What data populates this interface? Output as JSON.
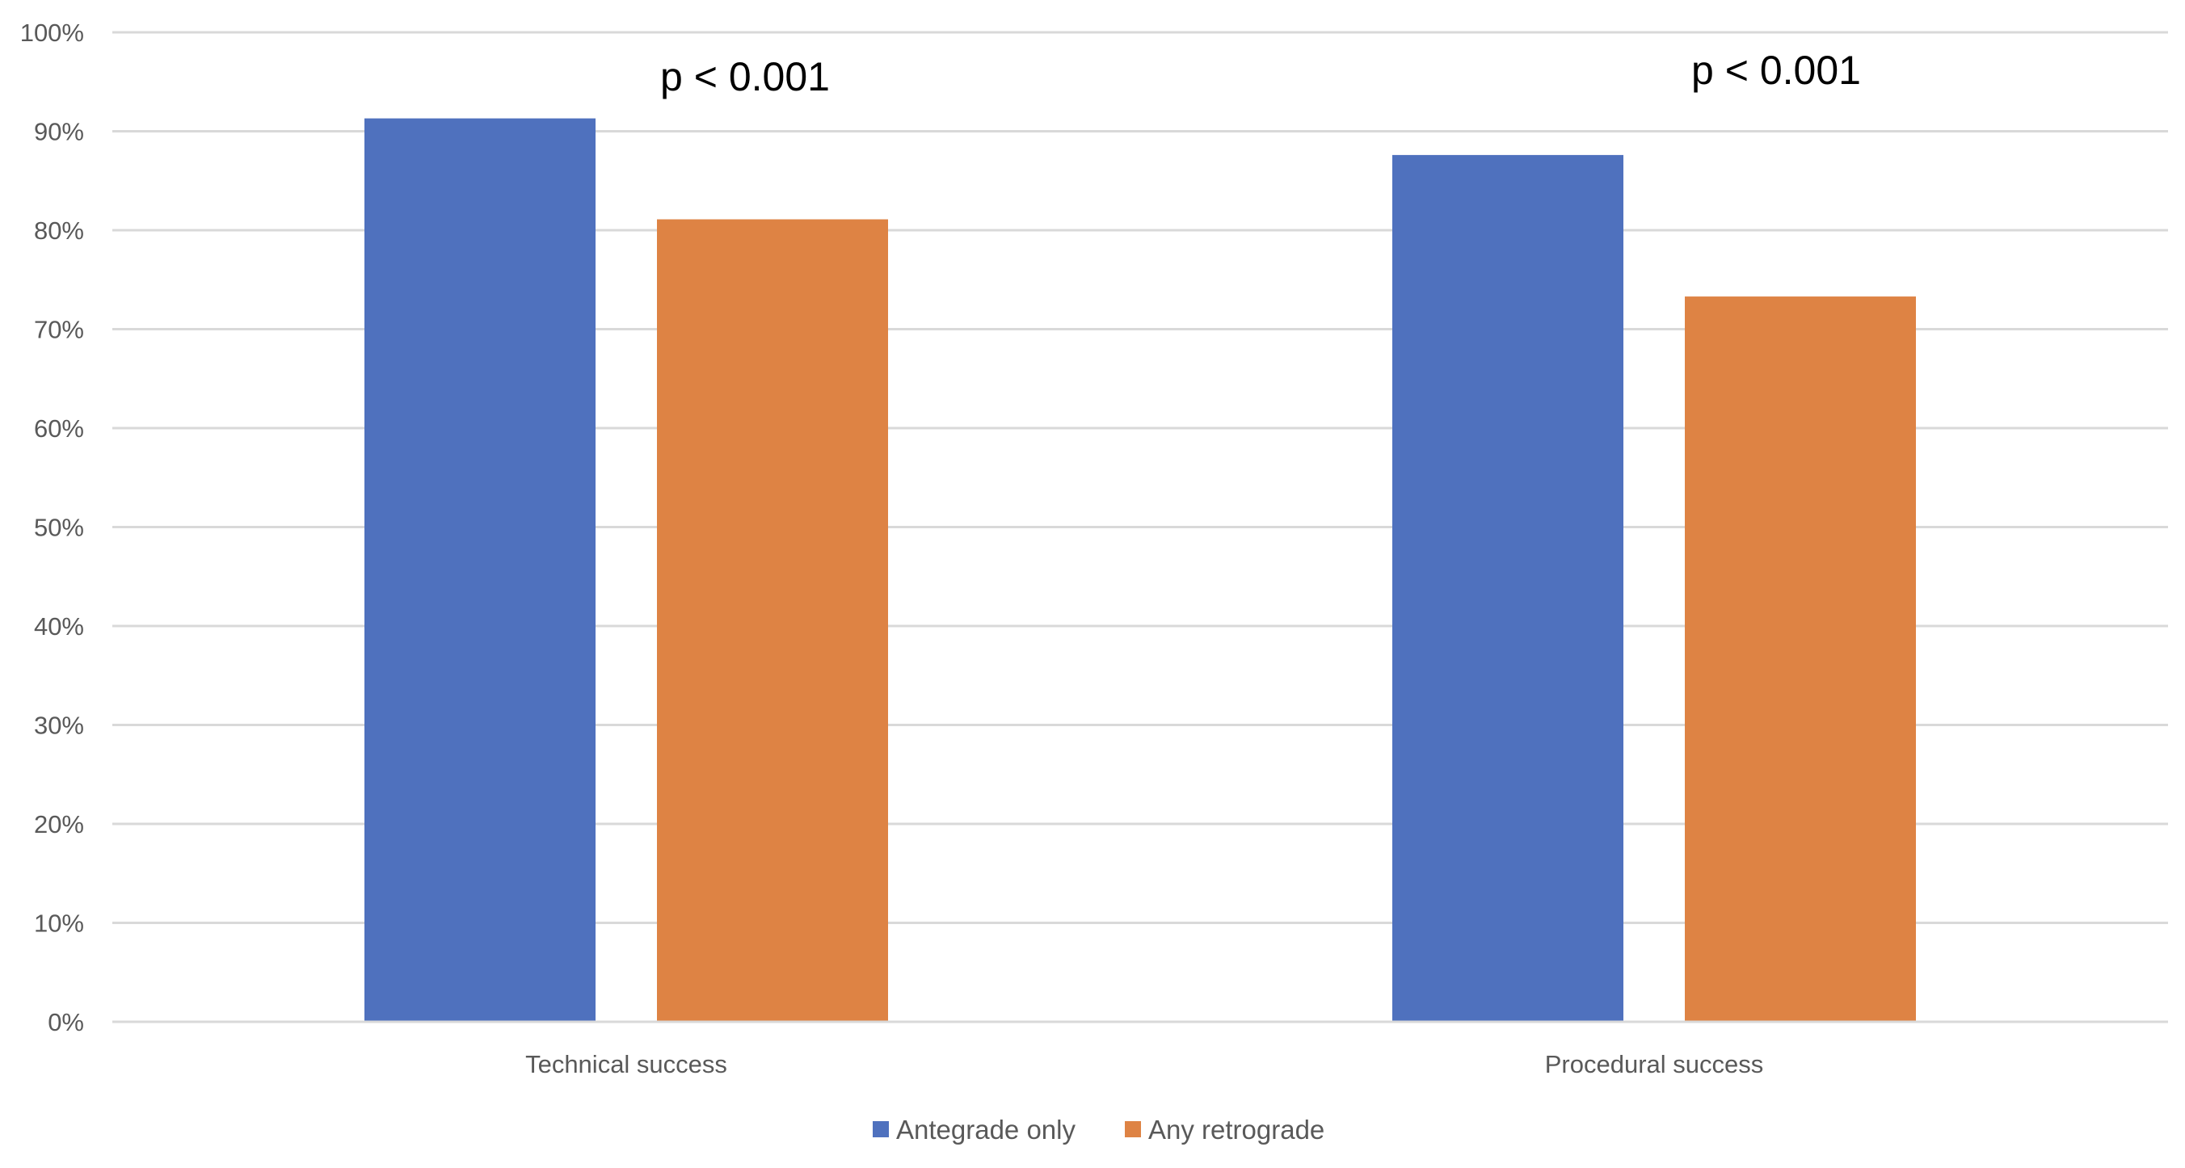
{
  "chart_data": {
    "type": "bar",
    "categories": [
      "Technical success",
      "Procedural success"
    ],
    "series": [
      {
        "name": "Antegrade only",
        "values": [
          91.3,
          87.6
        ],
        "color": "#4F71BE"
      },
      {
        "name": "Any retrograde",
        "values": [
          81.1,
          73.3
        ],
        "color": "#DE8344"
      }
    ],
    "ylim": [
      0,
      100
    ],
    "yticks": [
      "0%",
      "10%",
      "20%",
      "30%",
      "40%",
      "50%",
      "60%",
      "70%",
      "80%",
      "90%",
      "100%"
    ],
    "yunit": "%",
    "grid": true,
    "legend_position": "bottom",
    "annotations": [
      "p < 0.001",
      "p < 0.001"
    ],
    "title": "",
    "xlabel": "",
    "ylabel": ""
  }
}
